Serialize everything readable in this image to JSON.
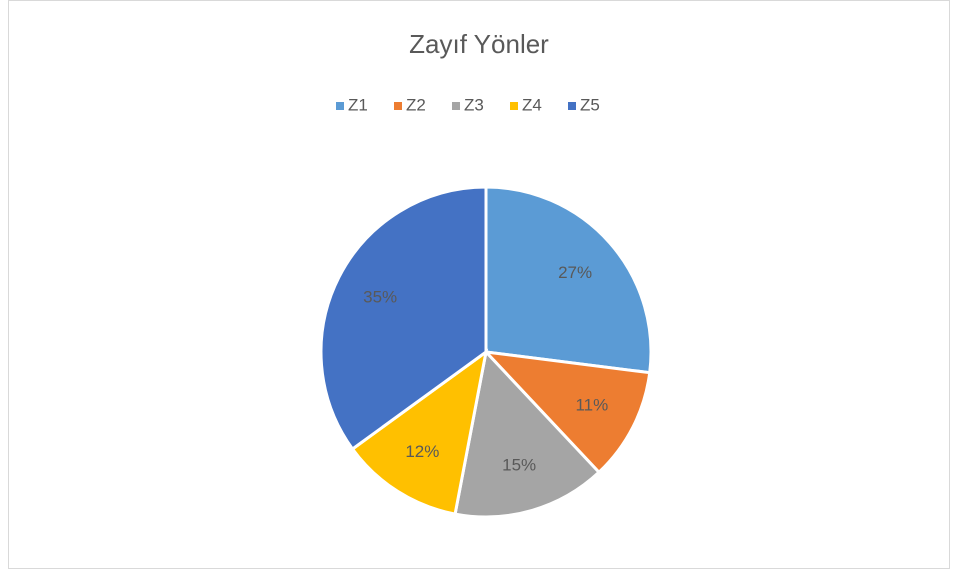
{
  "chart_data": {
    "type": "pie",
    "title": "Zayıf Yönler",
    "categories": [
      "Z1",
      "Z2",
      "Z3",
      "Z4",
      "Z5"
    ],
    "values": [
      27,
      11,
      15,
      12,
      35
    ],
    "value_labels": [
      "27%",
      "11%",
      "15%",
      "12%",
      "35%"
    ],
    "colors": [
      "#5b9bd5",
      "#ed7d31",
      "#a5a5a5",
      "#ffc000",
      "#4472c4"
    ],
    "legend": "top"
  }
}
